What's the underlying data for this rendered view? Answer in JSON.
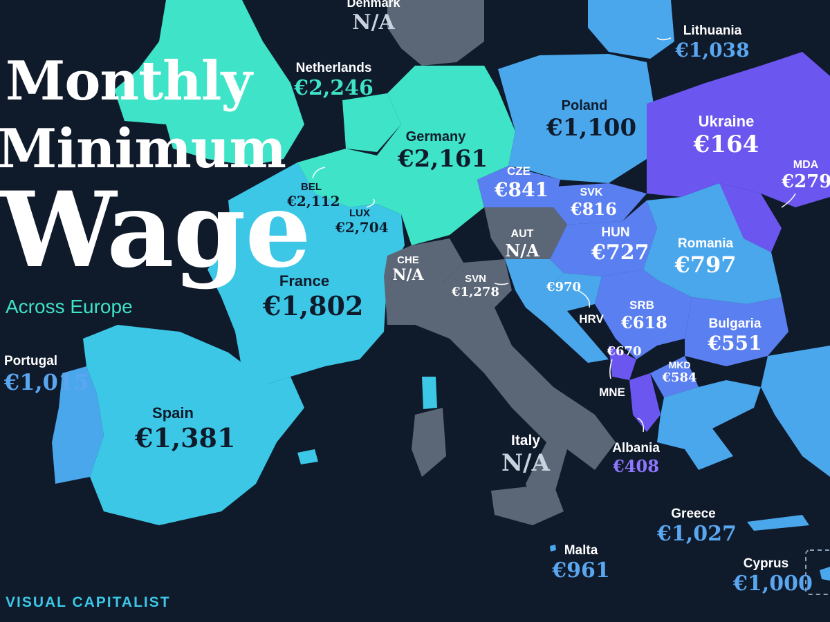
{
  "title": {
    "line1": "Monthly",
    "line2": "Minimum",
    "line3": "Wage",
    "subtitle": "Across Europe"
  },
  "footer": {
    "brand": "VISUAL CAPITALIST"
  },
  "colors": {
    "background": "#0f1a2b",
    "high": "#3fe3c8",
    "mid_high": "#3cc7e6",
    "mid": "#4aa7ec",
    "low": "#5a7ff0",
    "lowest": "#6b56ef",
    "na": "#5b6676"
  },
  "countries": [
    {
      "key": "denmark",
      "name": "Denmark",
      "value": "N/A"
    },
    {
      "key": "lithuania",
      "name": "Lithuania",
      "value": "€1,038"
    },
    {
      "key": "netherlands",
      "name": "Netherlands",
      "value": "€2,246"
    },
    {
      "key": "poland",
      "name": "Poland",
      "value": "€1,100"
    },
    {
      "key": "ukraine",
      "name": "Ukraine",
      "value": "€164"
    },
    {
      "key": "germany",
      "name": "Germany",
      "value": "€2,161"
    },
    {
      "key": "cze",
      "name": "CZE",
      "value": "€841"
    },
    {
      "key": "mda",
      "name": "MDA",
      "value": "€279"
    },
    {
      "key": "bel",
      "name": "BEL",
      "value": "€2,112"
    },
    {
      "key": "svk",
      "name": "SVK",
      "value": "€816"
    },
    {
      "key": "lux",
      "name": "LUX",
      "value": "€2,704"
    },
    {
      "key": "aut",
      "name": "AUT",
      "value": "N/A"
    },
    {
      "key": "hun",
      "name": "HUN",
      "value": "€727"
    },
    {
      "key": "romania",
      "name": "Romania",
      "value": "€797"
    },
    {
      "key": "che",
      "name": "CHE",
      "value": "N/A"
    },
    {
      "key": "france",
      "name": "France",
      "value": "€1,802"
    },
    {
      "key": "svn",
      "name": "SVN",
      "value": "€1,278"
    },
    {
      "key": "hrv",
      "name": "HRV",
      "value": "€970"
    },
    {
      "key": "srb",
      "name": "SRB",
      "value": "€618"
    },
    {
      "key": "bulgaria",
      "name": "Bulgaria",
      "value": "€551"
    },
    {
      "key": "portugal",
      "name": "Portugal",
      "value": "€1,015"
    },
    {
      "key": "mne",
      "name": "MNE",
      "value": "€670"
    },
    {
      "key": "mkd",
      "name": "MKD",
      "value": "€584"
    },
    {
      "key": "spain",
      "name": "Spain",
      "value": "€1,381"
    },
    {
      "key": "italy",
      "name": "Italy",
      "value": "N/A"
    },
    {
      "key": "albania",
      "name": "Albania",
      "value": "€408"
    },
    {
      "key": "greece",
      "name": "Greece",
      "value": "€1,027"
    },
    {
      "key": "malta",
      "name": "Malta",
      "value": "€961"
    },
    {
      "key": "cyprus",
      "name": "Cyprus",
      "value": "€1,000"
    }
  ]
}
